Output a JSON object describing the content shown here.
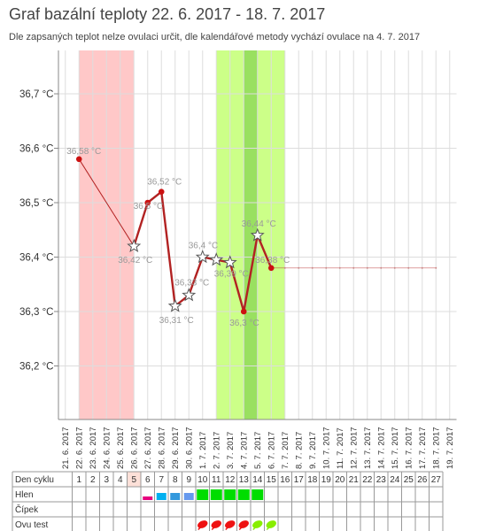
{
  "page": {
    "title": "Graf bazální teploty 22. 6. 2017 - 18. 7. 2017",
    "subtitle": "Dle zapsaných teplot nelze ovulaci určit, dle kalendářové metody vychází ovulace na 4. 7. 2017"
  },
  "chart_data": {
    "type": "line",
    "x_dates": [
      "21. 6. 2017",
      "22. 6. 2017",
      "23. 6. 2017",
      "24. 6. 2017",
      "25. 6. 2017",
      "26. 6. 2017",
      "27. 6. 2017",
      "28. 6. 2017",
      "29. 6. 2017",
      "30. 6. 2017",
      "1. 7. 2017",
      "2. 7. 2017",
      "3. 7. 2017",
      "4. 7. 2017",
      "5. 7. 2017",
      "6. 7. 2017",
      "7. 7. 2017",
      "8. 7. 2017",
      "9. 7. 2017",
      "10. 7. 2017",
      "11. 7. 2017",
      "12. 7. 2017",
      "13. 7. 2017",
      "14. 7. 2017",
      "15. 7. 2017",
      "16. 7. 2017",
      "17. 7. 2017",
      "18. 7. 2017",
      "19. 7. 2017"
    ],
    "y_ticks": [
      {
        "value": 36.2,
        "label": "36,2 °C"
      },
      {
        "value": 36.3,
        "label": "36,3 °C"
      },
      {
        "value": 36.4,
        "label": "36,4 °C"
      },
      {
        "value": 36.5,
        "label": "36,5 °C"
      },
      {
        "value": 36.6,
        "label": "36,6 °C"
      },
      {
        "value": 36.7,
        "label": "36,7 °C"
      }
    ],
    "ylim": [
      36.1,
      36.8
    ],
    "points": [
      {
        "date": "22. 6. 2017",
        "temp": 36.58,
        "label": "36,58 °C",
        "marker": "dot"
      },
      {
        "date": "26. 6. 2017",
        "temp": 36.42,
        "label": "36,42 °C",
        "marker": "star"
      },
      {
        "date": "27. 6. 2017",
        "temp": 36.5,
        "label": "36,5 °C",
        "marker": "dot"
      },
      {
        "date": "28. 6. 2017",
        "temp": 36.52,
        "label": "36,52 °C",
        "marker": "dot"
      },
      {
        "date": "29. 6. 2017",
        "temp": 36.31,
        "label": "36,31 °C",
        "marker": "star"
      },
      {
        "date": "30. 6. 2017",
        "temp": 36.33,
        "label": "36,33 °C",
        "marker": "star"
      },
      {
        "date": "1. 7. 2017",
        "temp": 36.4,
        "label": "36,4 °C",
        "marker": "star"
      },
      {
        "date": "2. 7. 2017",
        "temp": 36.395,
        "label": "",
        "marker": "star"
      },
      {
        "date": "3. 7. 2017",
        "temp": 36.39,
        "label": "36,39 °C",
        "marker": "star"
      },
      {
        "date": "4. 7. 2017",
        "temp": 36.3,
        "label": "36,3 °C",
        "marker": "dot"
      },
      {
        "date": "5. 7. 2017",
        "temp": 36.44,
        "label": "36,44 °C",
        "marker": "star"
      },
      {
        "date": "6. 7. 2017",
        "temp": 36.38,
        "label": "36,38 °C",
        "marker": "dot"
      }
    ],
    "projection": {
      "from": "6. 7. 2017",
      "to": "18. 7. 2017",
      "temp": 36.38
    },
    "bands": [
      {
        "from": "22. 6. 2017",
        "to": "26. 6. 2017",
        "color": "#ffc8c8",
        "meaning": "menstruation"
      },
      {
        "from": "2. 7. 2017",
        "to": "7. 7. 2017",
        "color": "#ccff88",
        "meaning": "fertile"
      },
      {
        "from": "4. 7. 2017",
        "to": "5. 7. 2017",
        "color": "#99e060",
        "meaning": "ovulation"
      }
    ],
    "colors": {
      "line": "#b22222",
      "dot": "#cc1111",
      "star_fill": "#ffffff",
      "star_stroke": "#555555",
      "grid": "#dddddd"
    }
  },
  "table": {
    "row_labels": [
      "Den cyklu",
      "Hlen",
      "Čípek",
      "Ovu test"
    ],
    "cycle_days": [
      "",
      "1",
      "2",
      "3",
      "4",
      "5",
      "6",
      "7",
      "8",
      "9",
      "10",
      "11",
      "12",
      "13",
      "14",
      "15",
      "16",
      "17",
      "18",
      "19",
      "20",
      "21",
      "22",
      "23",
      "24",
      "25",
      "26",
      "27"
    ],
    "highlight_day": "5",
    "hlen": [
      {
        "col": 6,
        "color": "#e6007e",
        "size": "small"
      },
      {
        "col": 7,
        "color": "#00b0f0",
        "size": "medium"
      },
      {
        "col": 8,
        "color": "#3399dd",
        "size": "medium"
      },
      {
        "col": 9,
        "color": "#6699ee",
        "size": "medium"
      },
      {
        "col": 10,
        "color": "#00dd00",
        "size": "large"
      },
      {
        "col": 11,
        "color": "#00dd00",
        "size": "large"
      },
      {
        "col": 12,
        "color": "#00dd00",
        "size": "large"
      },
      {
        "col": 13,
        "color": "#00dd00",
        "size": "large"
      },
      {
        "col": 14,
        "color": "#00dd00",
        "size": "large"
      }
    ],
    "ovu_test": [
      {
        "col": 10,
        "color": "#ee1111"
      },
      {
        "col": 11,
        "color": "#ee1111"
      },
      {
        "col": 12,
        "color": "#ee1111"
      },
      {
        "col": 13,
        "color": "#ee1111"
      },
      {
        "col": 14,
        "color": "#88ee00"
      },
      {
        "col": 15,
        "color": "#88ee00"
      }
    ]
  }
}
